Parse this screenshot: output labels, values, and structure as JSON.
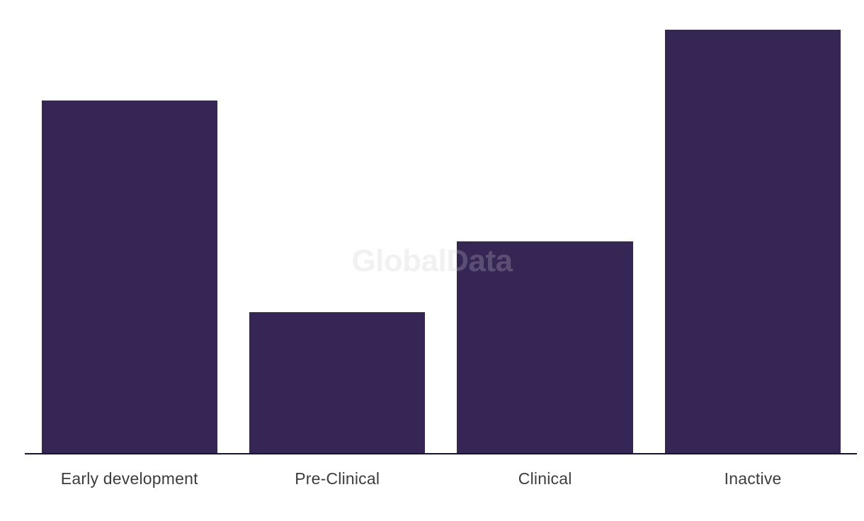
{
  "page": {
    "background_color": "#ffffff"
  },
  "watermark": {
    "text": "GlobalData"
  },
  "chart_data": {
    "type": "bar",
    "title": "",
    "xlabel": "",
    "ylabel": "",
    "categories": [
      "Early development",
      "Pre-Clinical",
      "Clinical",
      "Inactive"
    ],
    "values": [
      5,
      2,
      3,
      6
    ],
    "ylim": [
      0,
      6
    ],
    "grid": false,
    "legend": false,
    "y_axis_visible": false,
    "bar_color": "#362656",
    "axis_line_color": "#15152b",
    "label_color": "#3d3d3d"
  }
}
